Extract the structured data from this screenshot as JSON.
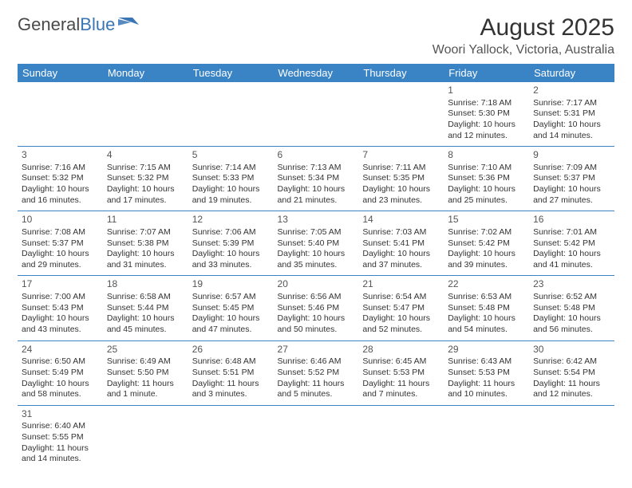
{
  "logo": {
    "part1": "General",
    "part2": "Blue"
  },
  "title": "August 2025",
  "subtitle": "Woori Yallock, Victoria, Australia",
  "columns": [
    "Sunday",
    "Monday",
    "Tuesday",
    "Wednesday",
    "Thursday",
    "Friday",
    "Saturday"
  ],
  "colors": {
    "header_bg": "#3a83c5",
    "header_fg": "#ffffff",
    "border": "#3a83c5",
    "text": "#333333",
    "logo_gray": "#4a4a4a",
    "logo_blue": "#3a75b5"
  },
  "weeks": [
    [
      null,
      null,
      null,
      null,
      null,
      {
        "n": "1",
        "sr": "Sunrise: 7:18 AM",
        "ss": "Sunset: 5:30 PM",
        "d1": "Daylight: 10 hours",
        "d2": "and 12 minutes."
      },
      {
        "n": "2",
        "sr": "Sunrise: 7:17 AM",
        "ss": "Sunset: 5:31 PM",
        "d1": "Daylight: 10 hours",
        "d2": "and 14 minutes."
      }
    ],
    [
      {
        "n": "3",
        "sr": "Sunrise: 7:16 AM",
        "ss": "Sunset: 5:32 PM",
        "d1": "Daylight: 10 hours",
        "d2": "and 16 minutes."
      },
      {
        "n": "4",
        "sr": "Sunrise: 7:15 AM",
        "ss": "Sunset: 5:32 PM",
        "d1": "Daylight: 10 hours",
        "d2": "and 17 minutes."
      },
      {
        "n": "5",
        "sr": "Sunrise: 7:14 AM",
        "ss": "Sunset: 5:33 PM",
        "d1": "Daylight: 10 hours",
        "d2": "and 19 minutes."
      },
      {
        "n": "6",
        "sr": "Sunrise: 7:13 AM",
        "ss": "Sunset: 5:34 PM",
        "d1": "Daylight: 10 hours",
        "d2": "and 21 minutes."
      },
      {
        "n": "7",
        "sr": "Sunrise: 7:11 AM",
        "ss": "Sunset: 5:35 PM",
        "d1": "Daylight: 10 hours",
        "d2": "and 23 minutes."
      },
      {
        "n": "8",
        "sr": "Sunrise: 7:10 AM",
        "ss": "Sunset: 5:36 PM",
        "d1": "Daylight: 10 hours",
        "d2": "and 25 minutes."
      },
      {
        "n": "9",
        "sr": "Sunrise: 7:09 AM",
        "ss": "Sunset: 5:37 PM",
        "d1": "Daylight: 10 hours",
        "d2": "and 27 minutes."
      }
    ],
    [
      {
        "n": "10",
        "sr": "Sunrise: 7:08 AM",
        "ss": "Sunset: 5:37 PM",
        "d1": "Daylight: 10 hours",
        "d2": "and 29 minutes."
      },
      {
        "n": "11",
        "sr": "Sunrise: 7:07 AM",
        "ss": "Sunset: 5:38 PM",
        "d1": "Daylight: 10 hours",
        "d2": "and 31 minutes."
      },
      {
        "n": "12",
        "sr": "Sunrise: 7:06 AM",
        "ss": "Sunset: 5:39 PM",
        "d1": "Daylight: 10 hours",
        "d2": "and 33 minutes."
      },
      {
        "n": "13",
        "sr": "Sunrise: 7:05 AM",
        "ss": "Sunset: 5:40 PM",
        "d1": "Daylight: 10 hours",
        "d2": "and 35 minutes."
      },
      {
        "n": "14",
        "sr": "Sunrise: 7:03 AM",
        "ss": "Sunset: 5:41 PM",
        "d1": "Daylight: 10 hours",
        "d2": "and 37 minutes."
      },
      {
        "n": "15",
        "sr": "Sunrise: 7:02 AM",
        "ss": "Sunset: 5:42 PM",
        "d1": "Daylight: 10 hours",
        "d2": "and 39 minutes."
      },
      {
        "n": "16",
        "sr": "Sunrise: 7:01 AM",
        "ss": "Sunset: 5:42 PM",
        "d1": "Daylight: 10 hours",
        "d2": "and 41 minutes."
      }
    ],
    [
      {
        "n": "17",
        "sr": "Sunrise: 7:00 AM",
        "ss": "Sunset: 5:43 PM",
        "d1": "Daylight: 10 hours",
        "d2": "and 43 minutes."
      },
      {
        "n": "18",
        "sr": "Sunrise: 6:58 AM",
        "ss": "Sunset: 5:44 PM",
        "d1": "Daylight: 10 hours",
        "d2": "and 45 minutes."
      },
      {
        "n": "19",
        "sr": "Sunrise: 6:57 AM",
        "ss": "Sunset: 5:45 PM",
        "d1": "Daylight: 10 hours",
        "d2": "and 47 minutes."
      },
      {
        "n": "20",
        "sr": "Sunrise: 6:56 AM",
        "ss": "Sunset: 5:46 PM",
        "d1": "Daylight: 10 hours",
        "d2": "and 50 minutes."
      },
      {
        "n": "21",
        "sr": "Sunrise: 6:54 AM",
        "ss": "Sunset: 5:47 PM",
        "d1": "Daylight: 10 hours",
        "d2": "and 52 minutes."
      },
      {
        "n": "22",
        "sr": "Sunrise: 6:53 AM",
        "ss": "Sunset: 5:48 PM",
        "d1": "Daylight: 10 hours",
        "d2": "and 54 minutes."
      },
      {
        "n": "23",
        "sr": "Sunrise: 6:52 AM",
        "ss": "Sunset: 5:48 PM",
        "d1": "Daylight: 10 hours",
        "d2": "and 56 minutes."
      }
    ],
    [
      {
        "n": "24",
        "sr": "Sunrise: 6:50 AM",
        "ss": "Sunset: 5:49 PM",
        "d1": "Daylight: 10 hours",
        "d2": "and 58 minutes."
      },
      {
        "n": "25",
        "sr": "Sunrise: 6:49 AM",
        "ss": "Sunset: 5:50 PM",
        "d1": "Daylight: 11 hours",
        "d2": "and 1 minute."
      },
      {
        "n": "26",
        "sr": "Sunrise: 6:48 AM",
        "ss": "Sunset: 5:51 PM",
        "d1": "Daylight: 11 hours",
        "d2": "and 3 minutes."
      },
      {
        "n": "27",
        "sr": "Sunrise: 6:46 AM",
        "ss": "Sunset: 5:52 PM",
        "d1": "Daylight: 11 hours",
        "d2": "and 5 minutes."
      },
      {
        "n": "28",
        "sr": "Sunrise: 6:45 AM",
        "ss": "Sunset: 5:53 PM",
        "d1": "Daylight: 11 hours",
        "d2": "and 7 minutes."
      },
      {
        "n": "29",
        "sr": "Sunrise: 6:43 AM",
        "ss": "Sunset: 5:53 PM",
        "d1": "Daylight: 11 hours",
        "d2": "and 10 minutes."
      },
      {
        "n": "30",
        "sr": "Sunrise: 6:42 AM",
        "ss": "Sunset: 5:54 PM",
        "d1": "Daylight: 11 hours",
        "d2": "and 12 minutes."
      }
    ],
    [
      {
        "n": "31",
        "sr": "Sunrise: 6:40 AM",
        "ss": "Sunset: 5:55 PM",
        "d1": "Daylight: 11 hours",
        "d2": "and 14 minutes."
      },
      null,
      null,
      null,
      null,
      null,
      null
    ]
  ]
}
